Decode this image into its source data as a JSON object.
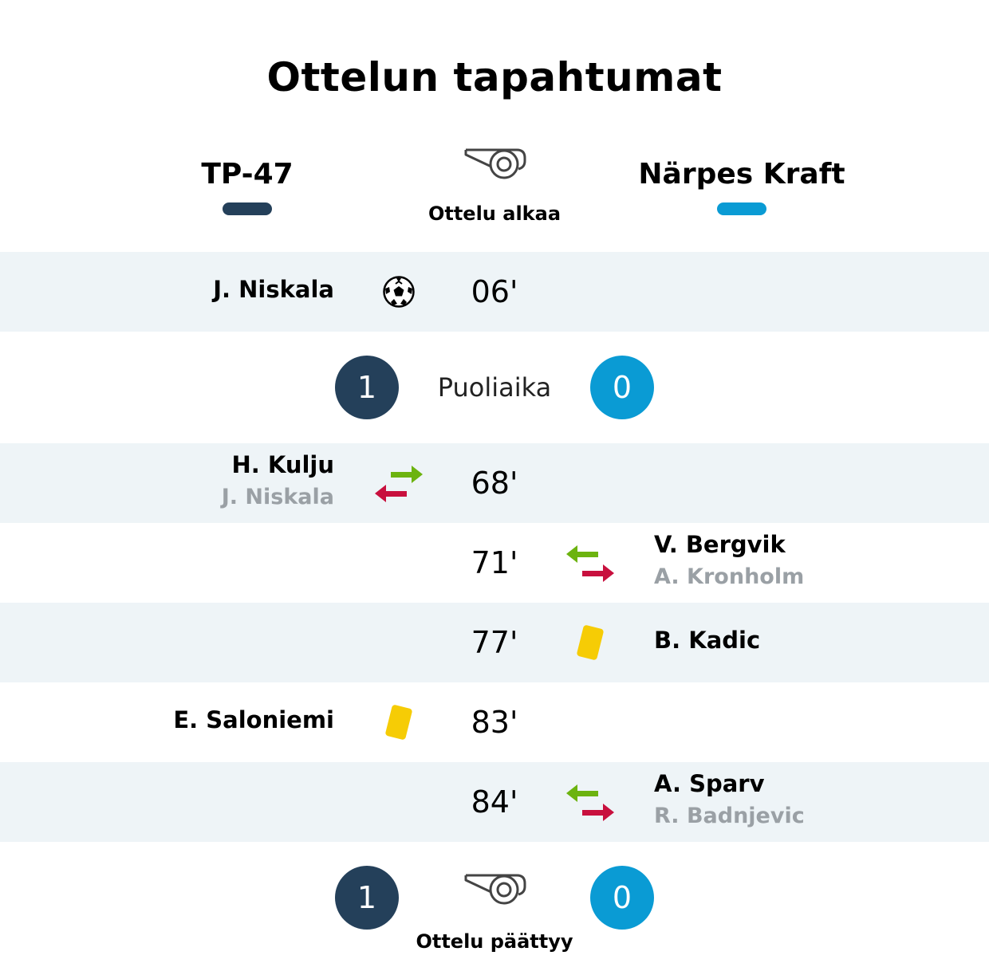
{
  "title": "Ottelun tapahtumat",
  "teams": {
    "home": {
      "name": "TP-47",
      "color": "#24405a"
    },
    "away": {
      "name": "Närpes Kraft",
      "color": "#0a9bd4"
    }
  },
  "start": {
    "label": "Ottelu alkaa",
    "icon": "whistle-icon"
  },
  "halftime": {
    "label": "Puoliaika",
    "home_score": "1",
    "away_score": "0"
  },
  "events": [
    {
      "minute": "06'",
      "side": "home",
      "type": "goal",
      "player": "J. Niskala",
      "icon": "soccer-ball-icon"
    },
    {
      "minute": "68'",
      "side": "home",
      "type": "substitution",
      "player_in": "H. Kulju",
      "player_out": "J. Niskala",
      "icon": "substitution-icon"
    },
    {
      "minute": "71'",
      "side": "away",
      "type": "substitution",
      "player_in": "V. Bergvik",
      "player_out": "A. Kronholm",
      "icon": "substitution-icon"
    },
    {
      "minute": "77'",
      "side": "away",
      "type": "yellow-card",
      "player": "B. Kadic",
      "icon": "yellow-card-icon"
    },
    {
      "minute": "83'",
      "side": "home",
      "type": "yellow-card",
      "player": "E. Saloniemi",
      "icon": "yellow-card-icon"
    },
    {
      "minute": "84'",
      "side": "away",
      "type": "substitution",
      "player_in": "A. Sparv",
      "player_out": "R. Badnjevic",
      "icon": "substitution-icon"
    }
  ],
  "final": {
    "label": "Ottelu päättyy",
    "home_score": "1",
    "away_score": "0",
    "icon": "whistle-icon"
  },
  "colors": {
    "sub_in": "#6cb30f",
    "sub_out": "#c8103e",
    "yellow_card": "#f6cc05",
    "row_shade": "#eef4f7"
  }
}
